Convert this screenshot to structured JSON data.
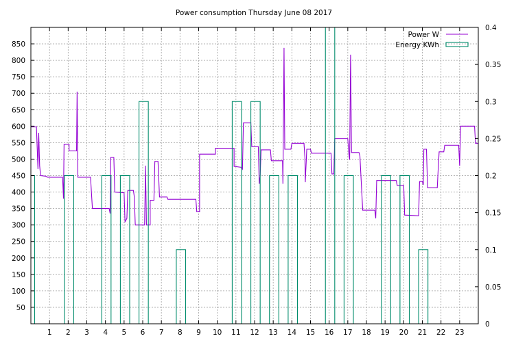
{
  "chart_data": {
    "type": "line",
    "title": "Power consumption Thursday June 08 2017",
    "xlabel": "",
    "ylabel": "",
    "y2label": "",
    "xlim": [
      0,
      24
    ],
    "ylim": [
      0,
      900
    ],
    "y2lim": [
      0,
      0.4
    ],
    "x_ticks": [
      "1",
      "2",
      "3",
      "4",
      "5",
      "6",
      "7",
      "8",
      "9",
      "10",
      "11",
      "12",
      "13",
      "14",
      "15",
      "16",
      "17",
      "18",
      "19",
      "20",
      "21",
      "22",
      "23"
    ],
    "y_ticks": [
      "50",
      "100",
      "150",
      "200",
      "250",
      "300",
      "350",
      "400",
      "450",
      "500",
      "550",
      "600",
      "650",
      "700",
      "750",
      "800",
      "850"
    ],
    "y2_ticks": [
      "0",
      "0.05",
      "0.1",
      "0.15",
      "0.2",
      "0.25",
      "0.3",
      "0.35",
      "0.4"
    ],
    "grid": true,
    "legend_position": "top-right",
    "series": [
      {
        "name": "Power W",
        "axis": "left",
        "style": "line",
        "color": "#9400d3",
        "points": [
          [
            0,
            598
          ],
          [
            0.3,
            598
          ],
          [
            0.3,
            595
          ],
          [
            0.38,
            470
          ],
          [
            0.42,
            580
          ],
          [
            0.47,
            480
          ],
          [
            0.52,
            450
          ],
          [
            0.8,
            448
          ],
          [
            0.9,
            445
          ],
          [
            1.7,
            445
          ],
          [
            1.75,
            380
          ],
          [
            1.78,
            545
          ],
          [
            2.05,
            545
          ],
          [
            2.05,
            525
          ],
          [
            2.45,
            525
          ],
          [
            2.48,
            705
          ],
          [
            2.52,
            445
          ],
          [
            3.2,
            445
          ],
          [
            3.3,
            350
          ],
          [
            4.2,
            350
          ],
          [
            4.25,
            335
          ],
          [
            4.28,
            505
          ],
          [
            4.45,
            505
          ],
          [
            4.5,
            400
          ],
          [
            5.0,
            398
          ],
          [
            5.05,
            310
          ],
          [
            5.15,
            320
          ],
          [
            5.2,
            405
          ],
          [
            5.5,
            405
          ],
          [
            5.55,
            385
          ],
          [
            5.6,
            300
          ],
          [
            6.1,
            300
          ],
          [
            6.15,
            480
          ],
          [
            6.2,
            300
          ],
          [
            6.4,
            300
          ],
          [
            6.4,
            375
          ],
          [
            6.6,
            375
          ],
          [
            6.65,
            493
          ],
          [
            6.82,
            493
          ],
          [
            6.9,
            385
          ],
          [
            7.3,
            385
          ],
          [
            7.35,
            378
          ],
          [
            8.85,
            378
          ],
          [
            8.9,
            340
          ],
          [
            9.05,
            340
          ],
          [
            9.05,
            515
          ],
          [
            9.9,
            515
          ],
          [
            9.9,
            533
          ],
          [
            10.9,
            533
          ],
          [
            10.9,
            478
          ],
          [
            11.3,
            475
          ],
          [
            11.35,
            470
          ],
          [
            11.4,
            610
          ],
          [
            11.8,
            610
          ],
          [
            11.85,
            538
          ],
          [
            12.2,
            538
          ],
          [
            12.25,
            425
          ],
          [
            12.3,
            450
          ],
          [
            12.35,
            528
          ],
          [
            12.85,
            528
          ],
          [
            12.9,
            495
          ],
          [
            13.5,
            495
          ],
          [
            13.52,
            425
          ],
          [
            13.58,
            838
          ],
          [
            13.62,
            530
          ],
          [
            13.95,
            530
          ],
          [
            14.0,
            548
          ],
          [
            14.65,
            548
          ],
          [
            14.7,
            505
          ],
          [
            14.72,
            430
          ],
          [
            14.8,
            530
          ],
          [
            15.0,
            530
          ],
          [
            15.05,
            518
          ],
          [
            16.1,
            518
          ],
          [
            16.15,
            455
          ],
          [
            16.25,
            455
          ],
          [
            16.3,
            562
          ],
          [
            17.0,
            562
          ],
          [
            17.05,
            522
          ],
          [
            17.1,
            498
          ],
          [
            17.15,
            817
          ],
          [
            17.2,
            520
          ],
          [
            17.6,
            520
          ],
          [
            17.65,
            510
          ],
          [
            17.8,
            345
          ],
          [
            18.45,
            345
          ],
          [
            18.5,
            320
          ],
          [
            18.55,
            435
          ],
          [
            19.6,
            435
          ],
          [
            19.65,
            420
          ],
          [
            20.0,
            420
          ],
          [
            20.05,
            330
          ],
          [
            20.8,
            328
          ],
          [
            20.85,
            432
          ],
          [
            21.0,
            432
          ],
          [
            21.05,
            422
          ],
          [
            21.08,
            530
          ],
          [
            21.22,
            530
          ],
          [
            21.28,
            413
          ],
          [
            21.8,
            413
          ],
          [
            21.85,
            470
          ],
          [
            21.9,
            522
          ],
          [
            22.15,
            522
          ],
          [
            22.2,
            542
          ],
          [
            22.95,
            542
          ],
          [
            23.0,
            480
          ],
          [
            23.05,
            600
          ],
          [
            23.8,
            600
          ],
          [
            23.85,
            548
          ],
          [
            24,
            548
          ]
        ]
      },
      {
        "name": "Energy KWh",
        "axis": "right",
        "style": "histeps",
        "color": "#008b6b",
        "points": [
          [
            0,
            0.2
          ],
          [
            0.2,
            0.2
          ],
          [
            0.2,
            0
          ],
          [
            1.8,
            0
          ],
          [
            1.8,
            0.2
          ],
          [
            2.3,
            0.2
          ],
          [
            2.3,
            0
          ],
          [
            3.8,
            0
          ],
          [
            3.8,
            0.2
          ],
          [
            4.3,
            0.2
          ],
          [
            4.3,
            0
          ],
          [
            4.8,
            0
          ],
          [
            4.8,
            0.2
          ],
          [
            5.3,
            0.2
          ],
          [
            5.3,
            0
          ],
          [
            5.8,
            0
          ],
          [
            5.8,
            0.3
          ],
          [
            6.3,
            0.3
          ],
          [
            6.3,
            0
          ],
          [
            7.8,
            0
          ],
          [
            7.8,
            0.1
          ],
          [
            8.3,
            0.1
          ],
          [
            8.3,
            0
          ],
          [
            10.8,
            0
          ],
          [
            10.8,
            0.3
          ],
          [
            11.3,
            0.3
          ],
          [
            11.3,
            0
          ],
          [
            11.8,
            0
          ],
          [
            11.8,
            0.3
          ],
          [
            12.3,
            0.3
          ],
          [
            12.3,
            0
          ],
          [
            12.8,
            0
          ],
          [
            12.8,
            0.2
          ],
          [
            13.3,
            0.2
          ],
          [
            13.3,
            0
          ],
          [
            13.8,
            0
          ],
          [
            13.8,
            0.2
          ],
          [
            14.3,
            0.2
          ],
          [
            14.3,
            0
          ],
          [
            15.8,
            0
          ],
          [
            15.8,
            0.4
          ],
          [
            16.3,
            0.4
          ],
          [
            16.3,
            0
          ],
          [
            16.8,
            0
          ],
          [
            16.8,
            0.2
          ],
          [
            17.3,
            0.2
          ],
          [
            17.3,
            0
          ],
          [
            18.8,
            0
          ],
          [
            18.8,
            0.2
          ],
          [
            19.3,
            0.2
          ],
          [
            19.3,
            0
          ],
          [
            19.8,
            0
          ],
          [
            19.8,
            0.2
          ],
          [
            20.3,
            0.2
          ],
          [
            20.3,
            0
          ],
          [
            20.8,
            0
          ],
          [
            20.8,
            0.1
          ],
          [
            21.3,
            0.1
          ],
          [
            21.3,
            0
          ],
          [
            24,
            0
          ]
        ]
      }
    ]
  }
}
